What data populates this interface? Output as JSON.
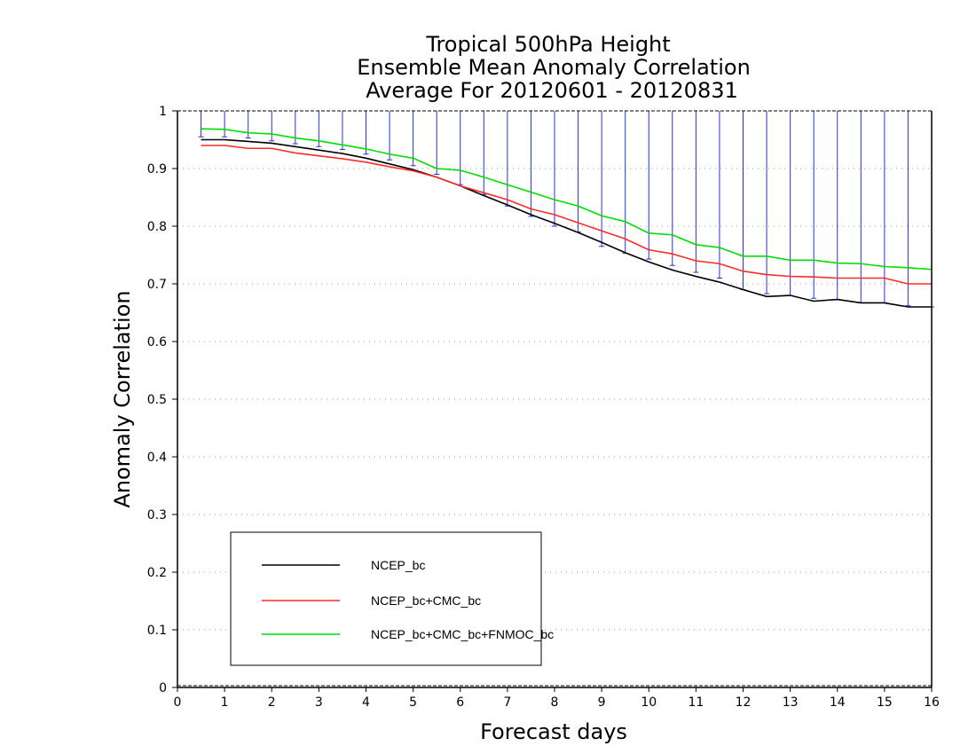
{
  "chart_data": {
    "type": "line",
    "title": [
      "Tropical 500hPa Height",
      "Ensemble Mean Anomaly Correlation",
      "Average For 20120601 - 20120831"
    ],
    "xlabel": "Forecast days",
    "ylabel": "Anomaly Correlation",
    "xlim": [
      0,
      16
    ],
    "ylim": [
      0,
      1
    ],
    "xticks": [
      "0",
      "1",
      "2",
      "3",
      "4",
      "5",
      "6",
      "7",
      "8",
      "9",
      "10",
      "11",
      "12",
      "13",
      "14",
      "15",
      "16"
    ],
    "yticks": [
      "0",
      "0.1",
      "0.2",
      "0.3",
      "0.4",
      "0.5",
      "0.6",
      "0.7",
      "0.8",
      "0.9",
      "1"
    ],
    "grid": "dotted horizontal",
    "legend_position": "bottom-left",
    "x": [
      0.5,
      1,
      1.5,
      2,
      2.5,
      3,
      3.5,
      4,
      4.5,
      5,
      5.5,
      6,
      6.5,
      7,
      7.5,
      8,
      8.5,
      9,
      9.5,
      10,
      10.5,
      11,
      11.5,
      12,
      12.5,
      13,
      13.5,
      14,
      14.5,
      15,
      15.5,
      16
    ],
    "series": [
      {
        "name": "NCEP_bc",
        "color": "#000000",
        "values": [
          0.95,
          0.95,
          0.947,
          0.944,
          0.938,
          0.932,
          0.926,
          0.918,
          0.908,
          0.898,
          0.885,
          0.87,
          0.853,
          0.837,
          0.82,
          0.805,
          0.789,
          0.772,
          0.754,
          0.738,
          0.724,
          0.713,
          0.703,
          0.69,
          0.678,
          0.68,
          0.67,
          0.673,
          0.667,
          0.667,
          0.66,
          0.66
        ]
      },
      {
        "name": "NCEP_bc+CMC_bc",
        "color": "#ff2a2a",
        "values": [
          0.94,
          0.94,
          0.935,
          0.935,
          0.927,
          0.922,
          0.917,
          0.911,
          0.903,
          0.896,
          0.885,
          0.87,
          0.858,
          0.846,
          0.83,
          0.82,
          0.806,
          0.792,
          0.778,
          0.759,
          0.752,
          0.74,
          0.735,
          0.722,
          0.716,
          0.713,
          0.712,
          0.71,
          0.71,
          0.71,
          0.7,
          0.7
        ]
      },
      {
        "name": "NCEP_bc+CMC_bc+FNMOC_bc",
        "color": "#00dd00",
        "values": [
          0.969,
          0.968,
          0.962,
          0.96,
          0.953,
          0.948,
          0.941,
          0.934,
          0.925,
          0.918,
          0.9,
          0.897,
          0.885,
          0.872,
          0.859,
          0.846,
          0.835,
          0.818,
          0.808,
          0.788,
          0.785,
          0.768,
          0.763,
          0.748,
          0.748,
          0.741,
          0.741,
          0.736,
          0.735,
          0.73,
          0.728,
          0.725
        ]
      }
    ],
    "error_bars": {
      "color": "#2233dd",
      "upper": 1.0,
      "lower": [
        0.955,
        0.955,
        0.953,
        0.948,
        0.943,
        0.938,
        0.933,
        0.925,
        0.915,
        0.905,
        0.89,
        0.872,
        0.855,
        0.835,
        0.817,
        0.8,
        0.79,
        0.765,
        0.753,
        0.743,
        0.732,
        0.72,
        0.71,
        0.69,
        0.683,
        0.68,
        0.675,
        0.673,
        0.667,
        0.667,
        0.662,
        0.66
      ]
    }
  }
}
